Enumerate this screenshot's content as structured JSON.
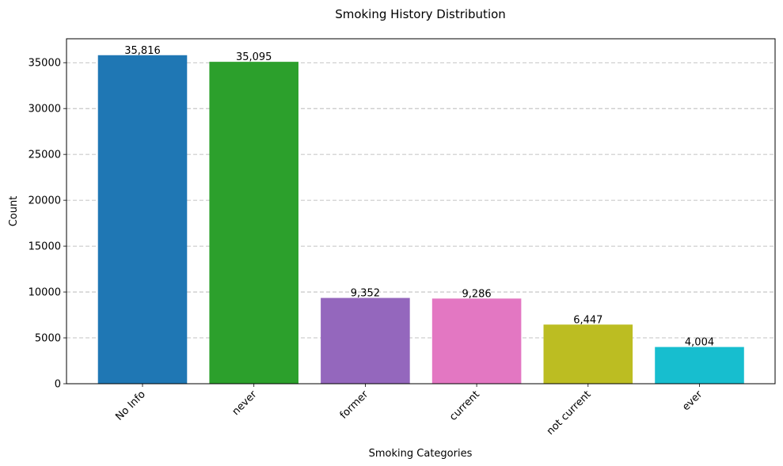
{
  "chart_data": {
    "type": "bar",
    "title": "Smoking History Distribution",
    "xlabel": "Smoking Categories",
    "ylabel": "Count",
    "categories": [
      "No Info",
      "never",
      "former",
      "current",
      "not current",
      "ever"
    ],
    "values": [
      35816,
      35095,
      9352,
      9286,
      6447,
      4004
    ],
    "value_labels": [
      "35,816",
      "35,095",
      "9,352",
      "9,286",
      "6,447",
      "4,004"
    ],
    "colors": [
      "#1f77b4",
      "#2ca02c",
      "#9467bd",
      "#e377c2",
      "#bcbd22",
      "#17becf"
    ],
    "ylim": [
      0,
      37607
    ],
    "yticks": [
      0,
      5000,
      10000,
      15000,
      20000,
      25000,
      30000,
      35000
    ],
    "ytick_labels": [
      "0",
      "5000",
      "10000",
      "15000",
      "20000",
      "25000",
      "30000",
      "35000"
    ],
    "grid": "y-dashed",
    "xtick_rotation_deg": 45
  }
}
